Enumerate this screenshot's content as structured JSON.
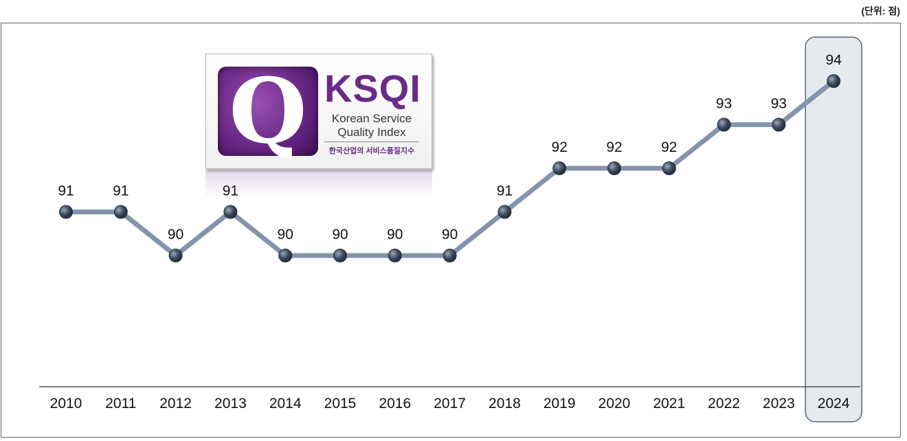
{
  "unit_label": "(단위: 점)",
  "logo": {
    "title": "KSQI",
    "q_letter": "Q",
    "subtitle_line1": "Korean Service",
    "subtitle_line2": "Quality Index",
    "korean_name": "한국산업의 서비스품질지수"
  },
  "chart_data": {
    "type": "line",
    "categories": [
      "2010",
      "2011",
      "2012",
      "2013",
      "2014",
      "2015",
      "2016",
      "2017",
      "2018",
      "2019",
      "2020",
      "2021",
      "2022",
      "2023",
      "2024"
    ],
    "series": [
      {
        "values": [
          91,
          91,
          90,
          91,
          90,
          90,
          90,
          90,
          91,
          92,
          92,
          92,
          93,
          93,
          94
        ]
      }
    ],
    "title": "",
    "xlabel": "",
    "ylabel": "",
    "ylim": [
      90,
      94
    ],
    "grid": false,
    "highlight_category": "2024",
    "line_color": "#8594ac",
    "marker_color": "#3d4a5c",
    "highlight_fill": "#e6e9ee",
    "highlight_stroke": "#5a6472"
  }
}
